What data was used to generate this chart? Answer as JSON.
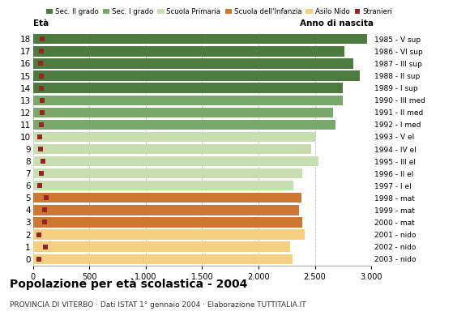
{
  "ages": [
    18,
    17,
    16,
    15,
    14,
    13,
    12,
    11,
    10,
    9,
    8,
    7,
    6,
    5,
    4,
    3,
    2,
    1,
    0
  ],
  "years": [
    "1985 - V sup",
    "1986 - VI sup",
    "1987 - III sup",
    "1988 - II sup",
    "1989 - I sup",
    "1990 - III med",
    "1991 - II med",
    "1992 - I med",
    "1993 - V el",
    "1994 - IV el",
    "1995 - III el",
    "1996 - II el",
    "1997 - I el",
    "1998 - mat",
    "1999 - mat",
    "2000 - mat",
    "2001 - nido",
    "2002 - nido",
    "2003 - nido"
  ],
  "bar_values": [
    2960,
    2760,
    2840,
    2900,
    2750,
    2750,
    2660,
    2680,
    2500,
    2470,
    2530,
    2390,
    2310,
    2380,
    2360,
    2390,
    2410,
    2280,
    2300
  ],
  "stranieri_values": [
    80,
    75,
    70,
    75,
    75,
    80,
    80,
    75,
    60,
    65,
    90,
    75,
    60,
    120,
    105,
    100,
    55,
    110,
    55
  ],
  "age_colors": [
    "#4d7a3e",
    "#4d7a3e",
    "#4d7a3e",
    "#4d7a3e",
    "#4d7a3e",
    "#7aa86a",
    "#7aa86a",
    "#7aa86a",
    "#c8ddb0",
    "#c8ddb0",
    "#c8ddb0",
    "#c8ddb0",
    "#c8ddb0",
    "#cc7733",
    "#cc7733",
    "#cc7733",
    "#f5d080",
    "#f5d080",
    "#f5d080"
  ],
  "stranieri_color": "#992222",
  "xlim": [
    0,
    3000
  ],
  "xticks": [
    0,
    500,
    1000,
    1500,
    2000,
    2500,
    3000
  ],
  "xticklabels": [
    "0",
    "500",
    "1.000",
    "1.500",
    "2.000",
    "2.500",
    "3.000"
  ],
  "title": "Popolazione per età scolastica - 2004",
  "subtitle": "PROVINCIA DI VITERBO · Dati ISTAT 1° gennaio 2004 · Elaborazione TUTTITALIA.IT",
  "ylabel": "Età",
  "ylabel2": "Anno di nascita",
  "legend_labels": [
    "Sec. II grado",
    "Sec. I grado",
    "Scuola Primaria",
    "Scuola dell'Infanzia",
    "Asilo Nido",
    "Stranieri"
  ],
  "legend_colors": [
    "#4d7a3e",
    "#7aa86a",
    "#c8ddb0",
    "#cc7733",
    "#f5d080",
    "#992222"
  ],
  "bar_height": 0.82,
  "grid_color": "#bbbbbb",
  "background_color": "#ffffff"
}
